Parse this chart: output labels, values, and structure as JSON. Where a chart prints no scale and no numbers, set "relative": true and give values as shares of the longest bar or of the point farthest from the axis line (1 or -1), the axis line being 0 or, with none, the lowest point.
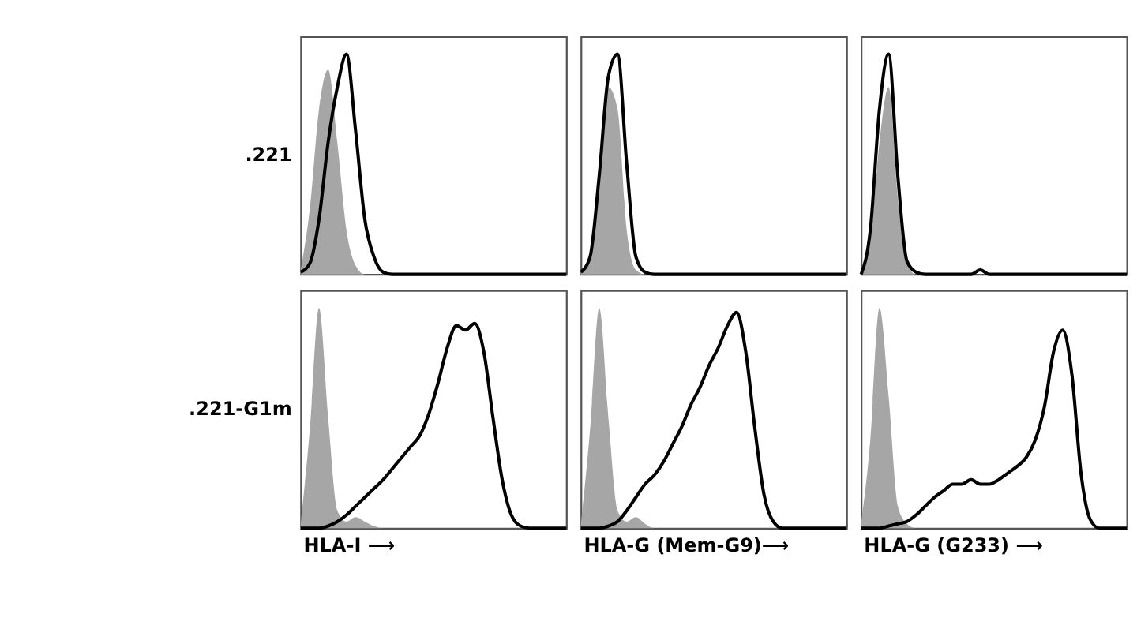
{
  "chart_data": [
    {
      "type": "area",
      "relative": true,
      "tick_labels": false,
      "ylabel": ".221",
      "categories": [
        null,
        null,
        null,
        null,
        null,
        null,
        null,
        null,
        null,
        null,
        null,
        null,
        null,
        null,
        null,
        null,
        null,
        null,
        null,
        null,
        null,
        null,
        null,
        null,
        null,
        null,
        null,
        null,
        null,
        null
      ],
      "series": [
        {
          "type": "area",
          "color": "#a6a6a6",
          "values": [
            0.02,
            0.3,
            0.75,
            0.93,
            0.6,
            0.2,
            0.04,
            0,
            0,
            0,
            0,
            0,
            0,
            0,
            0,
            0,
            0,
            0,
            0,
            0,
            0,
            0,
            0,
            0,
            0,
            0,
            0,
            0,
            0,
            0
          ]
        },
        {
          "type": "line",
          "color": "#000000",
          "values": [
            0.01,
            0.05,
            0.25,
            0.6,
            0.85,
            1.0,
            0.65,
            0.25,
            0.08,
            0.01,
            0,
            0,
            0,
            0,
            0,
            0,
            0,
            0,
            0,
            0,
            0,
            0,
            0,
            0,
            0,
            0,
            0,
            0,
            0,
            0
          ]
        }
      ]
    },
    {
      "type": "area",
      "relative": true,
      "tick_labels": false,
      "categories": [
        null,
        null,
        null,
        null,
        null,
        null,
        null,
        null,
        null,
        null,
        null,
        null,
        null,
        null,
        null,
        null,
        null,
        null,
        null,
        null,
        null,
        null,
        null,
        null,
        null,
        null,
        null,
        null,
        null,
        null
      ],
      "series": [
        {
          "type": "area",
          "color": "#a6a6a6",
          "values": [
            0.01,
            0.1,
            0.5,
            0.85,
            0.75,
            0.2,
            0.02,
            0,
            0,
            0,
            0,
            0,
            0,
            0,
            0,
            0,
            0,
            0,
            0,
            0,
            0,
            0,
            0,
            0,
            0,
            0,
            0,
            0,
            0,
            0
          ]
        },
        {
          "type": "line",
          "color": "#000000",
          "values": [
            0.01,
            0.08,
            0.45,
            0.9,
            1.0,
            0.5,
            0.08,
            0.01,
            0,
            0,
            0,
            0,
            0,
            0,
            0,
            0,
            0,
            0,
            0,
            0,
            0,
            0,
            0,
            0,
            0,
            0,
            0,
            0,
            0,
            0
          ]
        }
      ]
    },
    {
      "type": "area",
      "relative": true,
      "tick_labels": false,
      "categories": [
        null,
        null,
        null,
        null,
        null,
        null,
        null,
        null,
        null,
        null,
        null,
        null,
        null,
        null,
        null,
        null,
        null,
        null,
        null,
        null,
        null,
        null,
        null,
        null,
        null,
        null,
        null,
        null,
        null,
        null
      ],
      "series": [
        {
          "type": "area",
          "color": "#a6a6a6",
          "values": [
            0,
            0.15,
            0.6,
            0.85,
            0.35,
            0.05,
            0,
            0,
            0,
            0,
            0,
            0,
            0,
            0,
            0,
            0,
            0,
            0,
            0,
            0,
            0,
            0,
            0,
            0,
            0,
            0,
            0,
            0,
            0,
            0
          ]
        },
        {
          "type": "line",
          "color": "#000000",
          "values": [
            0,
            0.2,
            0.75,
            1.0,
            0.45,
            0.06,
            0.01,
            0,
            0,
            0,
            0,
            0,
            0,
            0.02,
            0,
            0,
            0,
            0,
            0,
            0,
            0,
            0,
            0,
            0,
            0,
            0,
            0,
            0,
            0,
            0
          ]
        }
      ]
    },
    {
      "type": "area",
      "relative": true,
      "tick_labels": false,
      "ylabel": ".221-G1m",
      "xlabel": "HLA-I ⟶",
      "categories": [
        null,
        null,
        null,
        null,
        null,
        null,
        null,
        null,
        null,
        null,
        null,
        null,
        null,
        null,
        null,
        null,
        null,
        null,
        null,
        null,
        null,
        null,
        null,
        null,
        null,
        null,
        null,
        null,
        null,
        null
      ],
      "series": [
        {
          "type": "area",
          "color": "#a6a6a6",
          "values": [
            0.02,
            0.45,
            1.0,
            0.5,
            0.08,
            0.03,
            0.05,
            0.03,
            0.01,
            0,
            0,
            0,
            0,
            0,
            0,
            0,
            0,
            0,
            0,
            0,
            0,
            0,
            0,
            0,
            0,
            0,
            0,
            0,
            0,
            0
          ]
        },
        {
          "type": "line",
          "color": "#000000",
          "values": [
            0,
            0,
            0,
            0.01,
            0.03,
            0.06,
            0.1,
            0.14,
            0.18,
            0.22,
            0.27,
            0.32,
            0.37,
            0.42,
            0.52,
            0.66,
            0.82,
            0.92,
            0.9,
            0.93,
            0.8,
            0.5,
            0.22,
            0.06,
            0.01,
            0,
            0,
            0,
            0,
            0
          ]
        }
      ]
    },
    {
      "type": "area",
      "relative": true,
      "tick_labels": false,
      "xlabel": "HLA-G (Mem-G9)⟶",
      "categories": [
        null,
        null,
        null,
        null,
        null,
        null,
        null,
        null,
        null,
        null,
        null,
        null,
        null,
        null,
        null,
        null,
        null,
        null,
        null,
        null,
        null,
        null,
        null,
        null,
        null,
        null,
        null,
        null,
        null,
        null
      ],
      "series": [
        {
          "type": "area",
          "color": "#a6a6a6",
          "values": [
            0.02,
            0.45,
            1.0,
            0.5,
            0.08,
            0.03,
            0.05,
            0.02,
            0,
            0,
            0,
            0,
            0,
            0,
            0,
            0,
            0,
            0,
            0,
            0,
            0,
            0,
            0,
            0,
            0,
            0,
            0,
            0,
            0,
            0
          ]
        },
        {
          "type": "line",
          "color": "#000000",
          "values": [
            0,
            0,
            0,
            0.01,
            0.03,
            0.08,
            0.14,
            0.2,
            0.24,
            0.3,
            0.38,
            0.46,
            0.56,
            0.64,
            0.74,
            0.82,
            0.92,
            0.98,
            0.8,
            0.45,
            0.15,
            0.03,
            0,
            0,
            0,
            0,
            0,
            0,
            0,
            0
          ]
        }
      ]
    },
    {
      "type": "area",
      "relative": true,
      "tick_labels": false,
      "xlabel": "HLA-G (G233) ⟶",
      "categories": [
        null,
        null,
        null,
        null,
        null,
        null,
        null,
        null,
        null,
        null,
        null,
        null,
        null,
        null,
        null,
        null,
        null,
        null,
        null,
        null,
        null,
        null,
        null,
        null,
        null,
        null,
        null,
        null,
        null,
        null
      ],
      "series": [
        {
          "type": "area",
          "color": "#a6a6a6",
          "values": [
            0.02,
            0.4,
            1.0,
            0.6,
            0.1,
            0.02,
            0,
            0,
            0,
            0,
            0,
            0,
            0,
            0,
            0,
            0,
            0,
            0,
            0,
            0,
            0,
            0,
            0,
            0,
            0,
            0,
            0,
            0,
            0,
            0
          ]
        },
        {
          "type": "line",
          "color": "#000000",
          "values": [
            0,
            0,
            0,
            0.01,
            0.02,
            0.03,
            0.06,
            0.1,
            0.14,
            0.17,
            0.2,
            0.2,
            0.22,
            0.2,
            0.2,
            0.22,
            0.25,
            0.28,
            0.32,
            0.4,
            0.55,
            0.8,
            0.9,
            0.7,
            0.25,
            0.04,
            0,
            0,
            0,
            0
          ]
        }
      ]
    }
  ]
}
